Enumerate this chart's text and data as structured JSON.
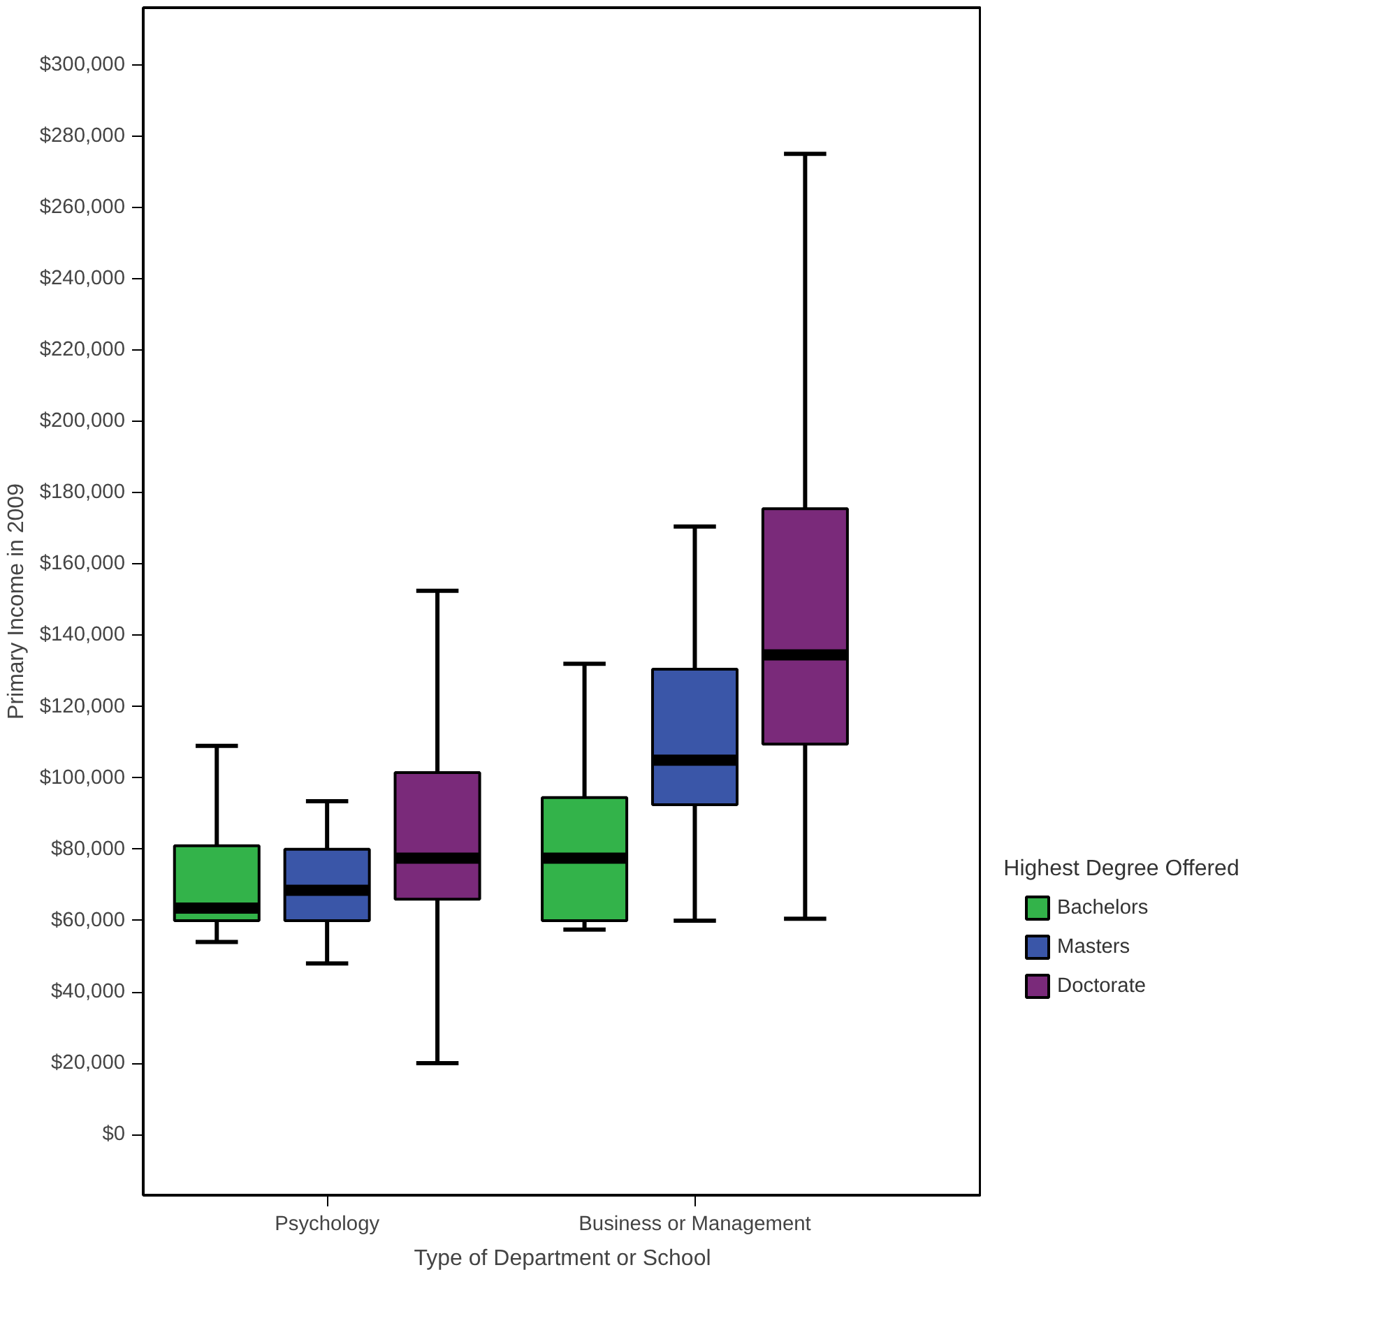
{
  "chart_data": {
    "type": "box",
    "xlabel": "Type of Department or School",
    "ylabel": "Primary Income in 2009",
    "legend_title": "Highest Degree Offered",
    "categories": [
      "Psychology",
      "Business or Management"
    ],
    "ylim": [
      -17000,
      316000
    ],
    "yticks": [
      {
        "value": 0,
        "label": "$0"
      },
      {
        "value": 20000,
        "label": "$20,000"
      },
      {
        "value": 40000,
        "label": "$40,000"
      },
      {
        "value": 60000,
        "label": "$60,000"
      },
      {
        "value": 80000,
        "label": "$80,000"
      },
      {
        "value": 100000,
        "label": "$100,000"
      },
      {
        "value": 120000,
        "label": "$120,000"
      },
      {
        "value": 140000,
        "label": "$140,000"
      },
      {
        "value": 160000,
        "label": "$160,000"
      },
      {
        "value": 180000,
        "label": "$180,000"
      },
      {
        "value": 200000,
        "label": "$200,000"
      },
      {
        "value": 220000,
        "label": "$220,000"
      },
      {
        "value": 240000,
        "label": "$240,000"
      },
      {
        "value": 260000,
        "label": "$260,000"
      },
      {
        "value": 280000,
        "label": "$280,000"
      },
      {
        "value": 300000,
        "label": "$300,000"
      }
    ],
    "grid": false,
    "legend": "right",
    "series": [
      {
        "name": "Bachelors",
        "color": "#33b34a",
        "boxes": [
          {
            "low": 54000,
            "q1": 60000,
            "median": 63500,
            "q3": 81000,
            "high": 109000
          },
          {
            "low": 57500,
            "q1": 60000,
            "median": 77500,
            "q3": 94500,
            "high": 132000
          }
        ]
      },
      {
        "name": "Masters",
        "color": "#3a56a8",
        "boxes": [
          {
            "low": 48000,
            "q1": 60000,
            "median": 68500,
            "q3": 80000,
            "high": 93500
          },
          {
            "low": 60000,
            "q1": 92500,
            "median": 105000,
            "q3": 130500,
            "high": 170500
          }
        ]
      },
      {
        "name": "Doctorate",
        "color": "#7a2a7a",
        "boxes": [
          {
            "low": 20000,
            "q1": 66000,
            "median": 77500,
            "q3": 101500,
            "high": 152500
          },
          {
            "low": 60500,
            "q1": 109500,
            "median": 134500,
            "q3": 175500,
            "high": 275000
          }
        ]
      }
    ]
  }
}
